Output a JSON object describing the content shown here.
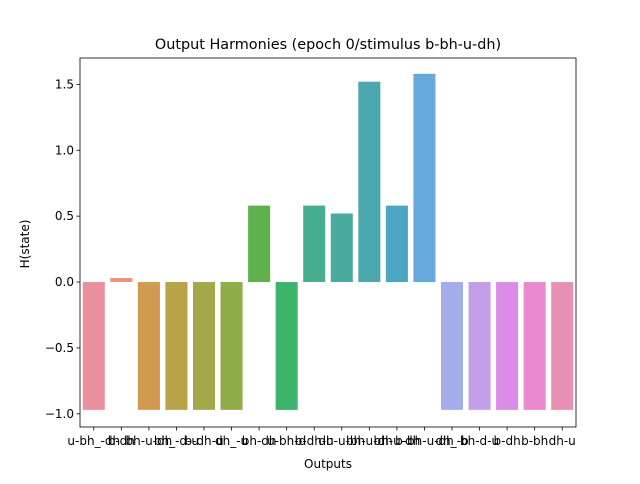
{
  "chart_data": {
    "type": "bar",
    "title": "Output Harmonies (epoch 0/stimulus b-bh-u-dh)",
    "xlabel": "Outputs",
    "ylabel": "H(state)",
    "ylim": [
      -1.1,
      1.7
    ],
    "yticks": [
      -1.0,
      -0.5,
      0.0,
      0.5,
      1.0,
      1.5
    ],
    "ytick_labels": [
      "−1.0",
      "−0.5",
      "0.0",
      "0.5",
      "1.0",
      "1.5"
    ],
    "grid": false,
    "categories": [
      "u-bh_-dh",
      "b-dh",
      "bh-u-dh",
      "bh_-d-u",
      "b-dh-u",
      "dh_-u",
      "bh-dh",
      "u-bh-d",
      "b-dh-u",
      "dh-u-bh",
      "bh-u-dh",
      "bh-u-dh",
      "b-bh-u-dh",
      "dh_-b",
      "bh-d-u",
      "b-dh",
      "b-bh",
      "dh-u"
    ],
    "values": [
      -0.97,
      0.03,
      -0.97,
      -0.97,
      -0.97,
      -0.97,
      0.58,
      -0.97,
      0.58,
      0.52,
      1.52,
      0.58,
      1.58,
      -0.97,
      -0.97,
      -0.97,
      -0.97,
      -0.97
    ],
    "colors": [
      "#e8909b",
      "#e99480",
      "#d19a4e",
      "#b8a24a",
      "#a3a84b",
      "#8eac48",
      "#5fb14d",
      "#3bb36a",
      "#47ae8f",
      "#49ab9d",
      "#4aa8ae",
      "#4ca5c2",
      "#65a9dd",
      "#a3adea",
      "#c59ee9",
      "#dd8be8",
      "#e98ad1",
      "#e890b4"
    ]
  }
}
